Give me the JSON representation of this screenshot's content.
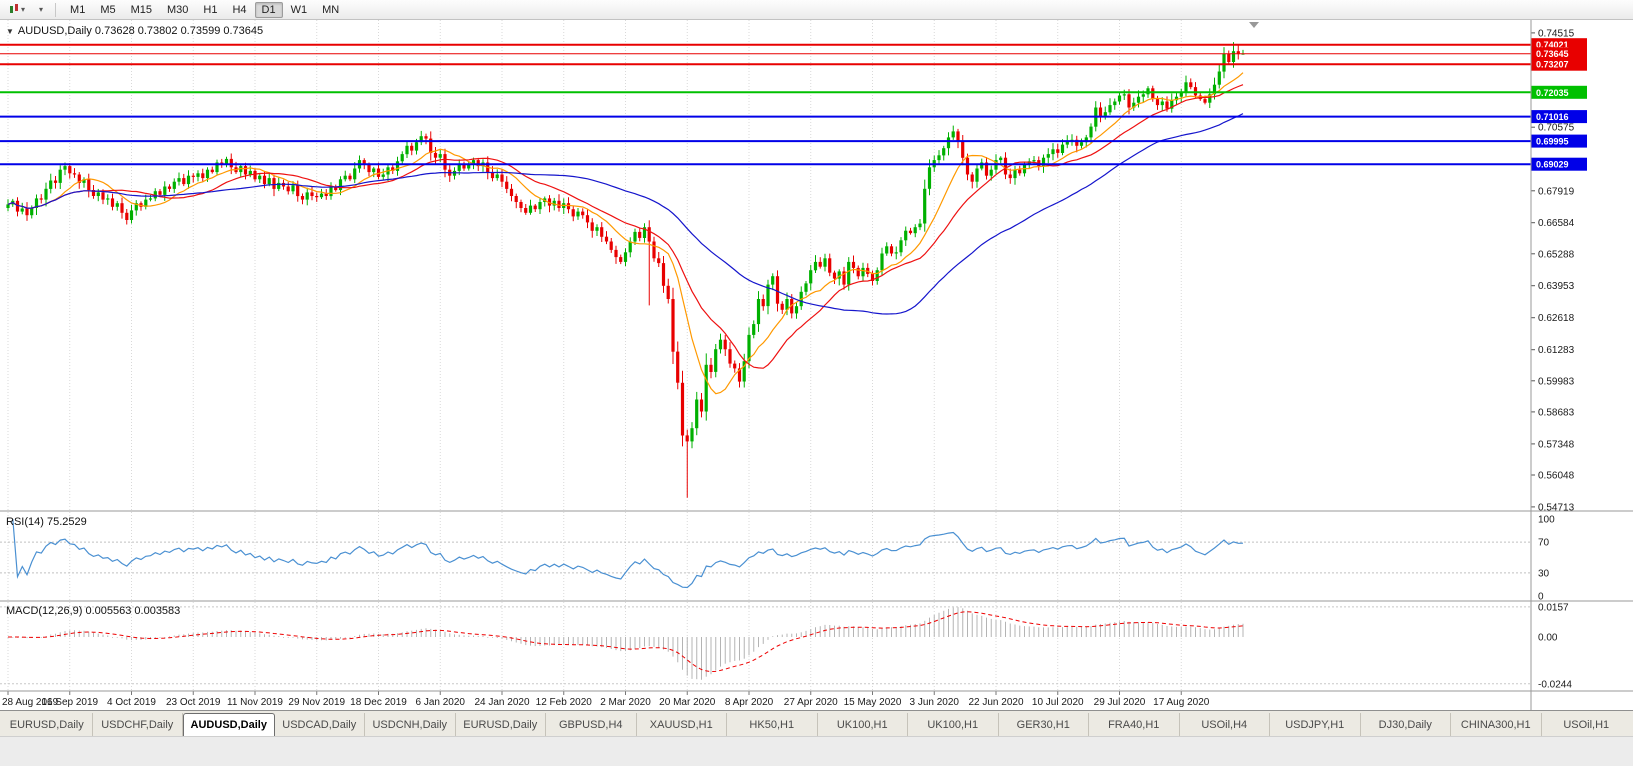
{
  "toolbar": {
    "timeframes": [
      "M1",
      "M5",
      "M15",
      "M30",
      "H1",
      "H4",
      "D1",
      "W1",
      "MN"
    ],
    "active_timeframe": "D1"
  },
  "chart": {
    "title": "AUDUSD,Daily 0.73628 0.73802 0.73599 0.73645"
  },
  "indicators": {
    "rsi_label": "RSI(14) 75.2529",
    "macd_label": "MACD(12,26,9) 0.005563 0.003583"
  },
  "tabs": {
    "items": [
      "EURUSD,Daily",
      "USDCHF,Daily",
      "AUDUSD,Daily",
      "USDCAD,Daily",
      "USDCNH,Daily",
      "EURUSD,Daily",
      "GBPUSD,H4",
      "XAUUSD,H1",
      "HK50,H1",
      "UK100,H1",
      "UK100,H1",
      "GER30,H1",
      "FRA40,H1",
      "USOil,H4",
      "USDJPY,H1",
      "DJ30,Daily",
      "CHINA300,H1",
      "USOil,H1"
    ],
    "active": "AUDUSD,Daily",
    "active_index": 2
  },
  "chart_data": {
    "type": "candlestick",
    "symbol": "AUDUSD",
    "period": "Daily",
    "ohlc_current": {
      "open": 0.73628,
      "high": 0.73802,
      "low": 0.73599,
      "close": 0.73645
    },
    "x_axis": {
      "bars_per_label": 13,
      "date_labels": [
        "28 Aug 2019",
        "16 Sep 2019",
        "4 Oct 2019",
        "23 Oct 2019",
        "11 Nov 2019",
        "29 Nov 2019",
        "18 Dec 2019",
        "6 Jan 2020",
        "24 Jan 2020",
        "12 Feb 2020",
        "2 Mar 2020",
        "20 Mar 2020",
        "8 Apr 2020",
        "27 Apr 2020",
        "15 May 2020",
        "3 Jun 2020",
        "22 Jun 2020",
        "10 Jul 2020",
        "29 Jul 2020",
        "17 Aug 2020"
      ]
    },
    "y_axis": {
      "tick_labels": [
        "0.74515",
        "0.70575",
        "0.67919",
        "0.66584",
        "0.65288",
        "0.63953",
        "0.62618",
        "0.61283",
        "0.59983",
        "0.58683",
        "0.57348",
        "0.56048",
        "0.54713"
      ]
    },
    "horizontal_lines": [
      {
        "price": 0.74021,
        "label": "0.74021",
        "color": "#e80000",
        "width": 2,
        "role": "resistance"
      },
      {
        "price": 0.73645,
        "label": "0.73645",
        "color": "#e80000",
        "width": 1,
        "role": "bid"
      },
      {
        "price": 0.73207,
        "label": "0.73207",
        "color": "#e80000",
        "width": 2,
        "role": "resistance"
      },
      {
        "price": 0.72035,
        "label": "0.72035",
        "color": "#00c000",
        "width": 2,
        "role": "support"
      },
      {
        "price": 0.71016,
        "label": "0.71016",
        "color": "#0000e8",
        "width": 2,
        "role": "support"
      },
      {
        "price": 0.69995,
        "label": "0.69995",
        "color": "#0000e8",
        "width": 2,
        "role": "support"
      },
      {
        "price": 0.69029,
        "label": "0.69029",
        "color": "#0000e8",
        "width": 2,
        "role": "support"
      }
    ],
    "candle_up_color": "#00b000",
    "candle_down_color": "#e80000",
    "closes": [
      0.6735,
      0.675,
      0.6705,
      0.6718,
      0.669,
      0.672,
      0.676,
      0.6755,
      0.68,
      0.6835,
      0.6825,
      0.688,
      0.6895,
      0.6865,
      0.686,
      0.6825,
      0.684,
      0.6795,
      0.677,
      0.6785,
      0.6755,
      0.676,
      0.6725,
      0.674,
      0.67,
      0.667,
      0.671,
      0.674,
      0.6725,
      0.6755,
      0.676,
      0.679,
      0.6775,
      0.681,
      0.68,
      0.683,
      0.6845,
      0.682,
      0.6855,
      0.685,
      0.6865,
      0.6845,
      0.688,
      0.687,
      0.691,
      0.69,
      0.6925,
      0.689,
      0.687,
      0.6895,
      0.686,
      0.6875,
      0.684,
      0.6855,
      0.682,
      0.6845,
      0.68,
      0.6825,
      0.681,
      0.679,
      0.6815,
      0.677,
      0.6755,
      0.6785,
      0.677,
      0.6765,
      0.678,
      0.677,
      0.681,
      0.6795,
      0.684,
      0.6855,
      0.684,
      0.6885,
      0.692,
      0.69,
      0.687,
      0.6885,
      0.685,
      0.686,
      0.689,
      0.6875,
      0.6915,
      0.6945,
      0.698,
      0.696,
      0.6995,
      0.702,
      0.701,
      0.695,
      0.693,
      0.6945,
      0.688,
      0.6855,
      0.6875,
      0.6905,
      0.6885,
      0.69,
      0.692,
      0.6895,
      0.691,
      0.687,
      0.6845,
      0.686,
      0.683,
      0.68,
      0.677,
      0.6745,
      0.672,
      0.67,
      0.673,
      0.6715,
      0.6745,
      0.676,
      0.673,
      0.675,
      0.672,
      0.674,
      0.6715,
      0.6685,
      0.6705,
      0.669,
      0.666,
      0.6625,
      0.664,
      0.66,
      0.658,
      0.6545,
      0.6515,
      0.6495,
      0.6535,
      0.658,
      0.662,
      0.6595,
      0.664,
      0.658,
      0.651,
      0.649,
      0.6395,
      0.634,
      0.612,
      0.599,
      0.577,
      0.5745,
      0.58,
      0.592,
      0.587,
      0.6065,
      0.6035,
      0.613,
      0.617,
      0.613,
      0.607,
      0.605,
      0.5995,
      0.608,
      0.619,
      0.6235,
      0.634,
      0.631,
      0.64,
      0.6435,
      0.632,
      0.6295,
      0.634,
      0.628,
      0.631,
      0.637,
      0.6405,
      0.646,
      0.6495,
      0.6475,
      0.651,
      0.645,
      0.6425,
      0.6455,
      0.64,
      0.6495,
      0.647,
      0.6435,
      0.647,
      0.6445,
      0.6415,
      0.646,
      0.653,
      0.656,
      0.653,
      0.6535,
      0.6585,
      0.6625,
      0.6615,
      0.664,
      0.6655,
      0.68,
      0.689,
      0.692,
      0.694,
      0.697,
      0.7015,
      0.704,
      0.7,
      0.693,
      0.686,
      0.683,
      0.6885,
      0.691,
      0.6855,
      0.688,
      0.692,
      0.693,
      0.686,
      0.6845,
      0.688,
      0.6865,
      0.69,
      0.6915,
      0.692,
      0.6895,
      0.693,
      0.6945,
      0.6965,
      0.695,
      0.6985,
      0.7,
      0.7005,
      0.698,
      0.6995,
      0.7015,
      0.706,
      0.714,
      0.7105,
      0.712,
      0.715,
      0.7165,
      0.719,
      0.7195,
      0.714,
      0.716,
      0.7185,
      0.7195,
      0.722,
      0.7175,
      0.715,
      0.7165,
      0.7135,
      0.717,
      0.7185,
      0.7205,
      0.7245,
      0.7225,
      0.719,
      0.7175,
      0.716,
      0.7195,
      0.7235,
      0.729,
      0.7365,
      0.733,
      0.7375,
      0.7363,
      0.7365
    ],
    "wick_overrides": {
      "87": {
        "high": 0.7042
      },
      "135": {
        "low": 0.6313
      },
      "143": {
        "low": 0.551
      },
      "199": {
        "high": 0.7064
      },
      "258": {
        "high": 0.7413
      },
      "260": {
        "high": 0.73802,
        "low": 0.73599
      }
    },
    "moving_averages": [
      {
        "period": 10,
        "color": "#ff9900"
      },
      {
        "period": 20,
        "color": "#ee1111"
      },
      {
        "period": 50,
        "color": "#1515cc"
      }
    ],
    "rsi": {
      "period": 14,
      "value": 75.2529,
      "color": "#4a90d2",
      "levels": [
        "100",
        "70",
        "30",
        "0"
      ],
      "dashed_levels": [
        70,
        30
      ]
    },
    "macd": {
      "fast": 12,
      "slow": 26,
      "signal_period": 9,
      "macd_value": 0.005563,
      "signal_value": 0.003583,
      "levels": [
        "0.0157",
        "0.00",
        "-0.0244"
      ],
      "hist_color": "#b4b4b4",
      "signal_color": "#ee0000"
    }
  }
}
